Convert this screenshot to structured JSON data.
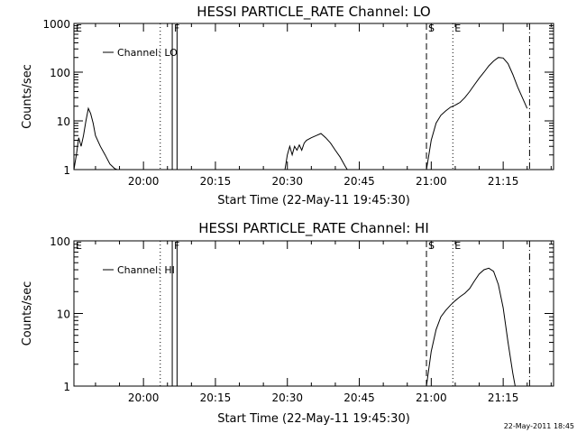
{
  "chart_data": [
    {
      "type": "line",
      "title": "HESSI PARTICLE_RATE Channel: LO",
      "xlabel": "Start Time (22-May-11 19:45:30)",
      "ylabel": "Counts/sec",
      "yscale": "log",
      "ylim": [
        1,
        1000
      ],
      "xlim": [
        "19:45:30",
        "21:25:30"
      ],
      "x_ticks": [
        "20:00",
        "20:15",
        "20:30",
        "20:45",
        "21:00",
        "21:15"
      ],
      "y_ticks": [
        "1",
        "10",
        "100",
        "1000"
      ],
      "legend": "upper-left",
      "grid": false,
      "series": [
        {
          "name": "Channel: LO",
          "segments": [
            {
              "x": [
                "19:45:30",
                "19:46:00",
                "19:46:30",
                "19:47:00",
                "19:47:30",
                "19:48:00",
                "19:48:30",
                "19:49:00",
                "19:49:30",
                "19:50:00",
                "19:51:00",
                "19:52:00",
                "19:53:00",
                "19:54:00",
                "19:54:30"
              ],
              "y": [
                1,
                2,
                4.5,
                3,
                5,
                10,
                18,
                14,
                9,
                5,
                3,
                2,
                1.3,
                1.05,
                1
              ]
            },
            {
              "x": [
                "20:29:30",
                "20:30:00",
                "20:30:30",
                "20:31:00",
                "20:31:30",
                "20:32:00",
                "20:32:30",
                "20:33:00",
                "20:33:30",
                "20:34:00",
                "20:35:00",
                "20:36:00",
                "20:37:00",
                "20:38:00",
                "20:39:00",
                "20:40:00",
                "20:41:00",
                "20:42:00",
                "20:42:30"
              ],
              "y": [
                1,
                2,
                3,
                2,
                3,
                2.5,
                3.2,
                2.5,
                3.5,
                4,
                4.5,
                5,
                5.5,
                4.5,
                3.5,
                2.5,
                1.8,
                1.2,
                1
              ]
            },
            {
              "x": [
                "20:59:00",
                "20:59:30",
                "21:00:00",
                "21:01:00",
                "21:02:00",
                "21:03:00",
                "21:04:00",
                "21:05:00",
                "21:06:00",
                "21:07:00",
                "21:08:00",
                "21:09:00",
                "21:10:00",
                "21:11:00",
                "21:12:00",
                "21:13:00",
                "21:14:00",
                "21:15:00",
                "21:16:00",
                "21:17:00",
                "21:18:00",
                "21:19:00",
                "21:20:00"
              ],
              "y": [
                1,
                2,
                4,
                9,
                13,
                16,
                19,
                21,
                24,
                30,
                40,
                55,
                75,
                100,
                135,
                170,
                200,
                195,
                150,
                90,
                50,
                30,
                18
              ]
            }
          ]
        }
      ],
      "markers": [
        {
          "label": "E",
          "time": "19:45:30",
          "style": "dotted"
        },
        {
          "label": "F",
          "time": "20:06:00",
          "style": "solid"
        },
        {
          "label": "",
          "time": "20:07:00",
          "style": "solid"
        },
        {
          "label": "",
          "time": "20:03:30",
          "style": "dotted"
        },
        {
          "label": "S",
          "time": "20:59:00",
          "style": "dashed"
        },
        {
          "label": "E",
          "time": "21:04:30",
          "style": "dotted"
        },
        {
          "label": "",
          "time": "21:20:30",
          "style": "dashdot"
        }
      ]
    },
    {
      "type": "line",
      "title": "HESSI PARTICLE_RATE Channel: HI",
      "xlabel": "Start Time (22-May-11 19:45:30)",
      "ylabel": "Counts/sec",
      "yscale": "log",
      "ylim": [
        1,
        100
      ],
      "xlim": [
        "19:45:30",
        "21:25:30"
      ],
      "x_ticks": [
        "20:00",
        "20:15",
        "20:30",
        "20:45",
        "21:00",
        "21:15"
      ],
      "y_ticks": [
        "1",
        "10",
        "100"
      ],
      "legend": "upper-left",
      "grid": false,
      "series": [
        {
          "name": "Channel: HI",
          "segments": [
            {
              "x": [
                "20:59:00",
                "21:00:00",
                "21:01:00",
                "21:02:00",
                "21:03:00",
                "21:04:00",
                "21:05:00",
                "21:06:00",
                "21:07:00",
                "21:08:00",
                "21:09:00",
                "21:10:00",
                "21:11:00",
                "21:12:00",
                "21:13:00",
                "21:14:00",
                "21:15:00",
                "21:16:00",
                "21:17:00",
                "21:17:30"
              ],
              "y": [
                1,
                3,
                6,
                9,
                11,
                13,
                15,
                17,
                19,
                22,
                28,
                35,
                40,
                42,
                38,
                25,
                12,
                4,
                1.5,
                1
              ]
            }
          ]
        }
      ],
      "markers": [
        {
          "label": "E",
          "time": "19:45:30",
          "style": "dotted"
        },
        {
          "label": "F",
          "time": "20:06:00",
          "style": "solid"
        },
        {
          "label": "",
          "time": "20:07:00",
          "style": "solid"
        },
        {
          "label": "",
          "time": "20:03:30",
          "style": "dotted"
        },
        {
          "label": "S",
          "time": "20:59:00",
          "style": "dashed"
        },
        {
          "label": "E",
          "time": "21:04:30",
          "style": "dotted"
        },
        {
          "label": "",
          "time": "21:20:30",
          "style": "dashdot"
        }
      ]
    }
  ],
  "footer": {
    "timestamp": "22-May-2011 18:45"
  }
}
